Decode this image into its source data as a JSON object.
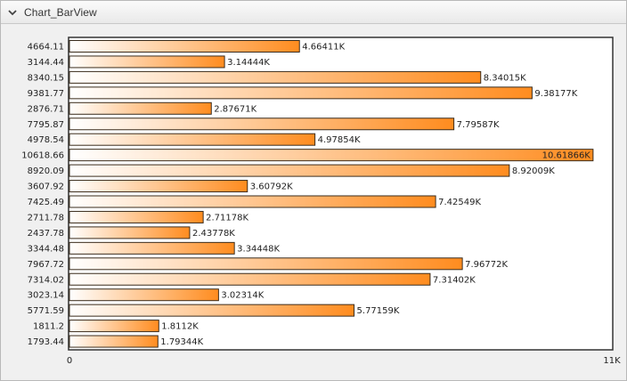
{
  "panel": {
    "title": "Chart_BarView"
  },
  "icons": {
    "collapse": "chevron-down-icon"
  },
  "colors": {
    "bar_start": "#ffffff",
    "bar_end": "#ff8c1f",
    "bar_border": "#3a2c1c"
  },
  "chart_data": {
    "type": "bar",
    "orientation": "horizontal",
    "title": "",
    "xlabel": "",
    "ylabel": "",
    "xlim": [
      0,
      11000
    ],
    "x_tick_labels": [
      "0",
      "11K"
    ],
    "grid": false,
    "categories": [
      "4664.11",
      "3144.44",
      "8340.15",
      "9381.77",
      "2876.71",
      "7795.87",
      "4978.54",
      "10618.66",
      "8920.09",
      "3607.92",
      "7425.49",
      "2711.78",
      "2437.78",
      "3344.48",
      "7967.72",
      "7314.02",
      "3023.14",
      "5771.59",
      "1811.2",
      "1793.44"
    ],
    "values": [
      4664.11,
      3144.44,
      8340.15,
      9381.77,
      2876.71,
      7795.87,
      4978.54,
      10618.66,
      8920.09,
      3607.92,
      7425.49,
      2711.78,
      2437.78,
      3344.48,
      7967.72,
      7314.02,
      3023.14,
      5771.59,
      1811.2,
      1793.44
    ],
    "data_labels": [
      "4.66411K",
      "3.14444K",
      "8.34015K",
      "9.38177K",
      "2.87671K",
      "7.79587K",
      "4.97854K",
      "10.61866K",
      "8.92009K",
      "3.60792K",
      "7.42549K",
      "2.71178K",
      "2.43778K",
      "3.34448K",
      "7.96772K",
      "7.31402K",
      "3.02314K",
      "5.77159K",
      "1.8112K",
      "1.79344K"
    ]
  }
}
